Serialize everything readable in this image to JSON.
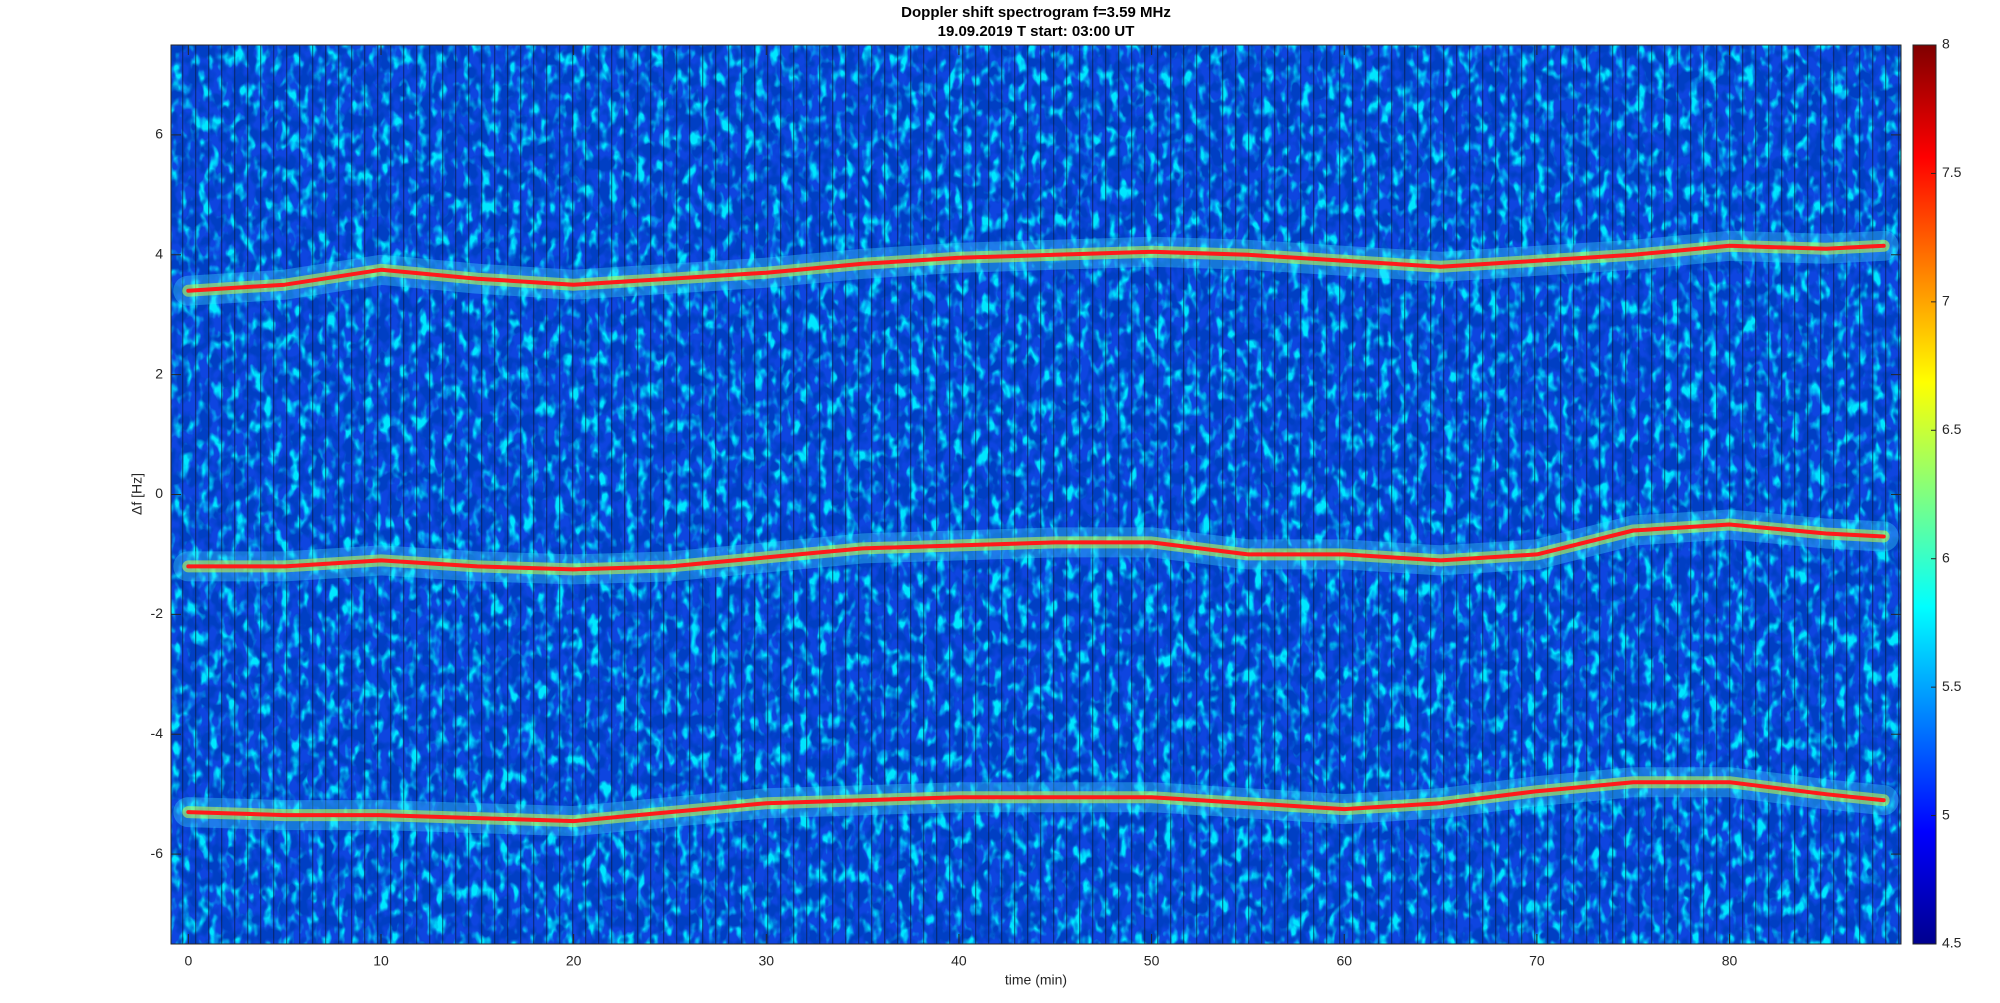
{
  "chart_data": {
    "type": "spectrogram",
    "title": "Doppler shift spectrogram f=3.59 MHz",
    "subtitle": "19.09.2019   T start: 03:00 UT",
    "x_label": "time (min)",
    "y_label": "Δf [Hz]",
    "xlim": [
      -0.9,
      88.9
    ],
    "ylim": [
      -7.5,
      7.5
    ],
    "xticks": [
      0,
      10,
      20,
      30,
      40,
      50,
      60,
      70,
      80
    ],
    "yticks": [
      -6,
      -4,
      -2,
      0,
      2,
      4,
      6
    ],
    "clim": [
      4.5,
      8
    ],
    "cticks": [
      4.5,
      5,
      5.5,
      6,
      6.5,
      7,
      7.5,
      8
    ],
    "colormap": [
      "#00008f",
      "#0000ff",
      "#0080ff",
      "#00ffff",
      "#80ff80",
      "#ffff00",
      "#ff8000",
      "#ff0000",
      "#800000"
    ],
    "x": [
      0,
      5,
      10,
      15,
      20,
      25,
      30,
      35,
      40,
      45,
      50,
      55,
      60,
      65,
      70,
      75,
      80,
      85,
      88
    ],
    "series": [
      {
        "color": "#ff1a1a",
        "values": [
          3.4,
          3.5,
          3.75,
          3.6,
          3.5,
          3.6,
          3.7,
          3.85,
          3.95,
          4.0,
          4.05,
          4.0,
          3.9,
          3.8,
          3.9,
          4.0,
          4.15,
          4.1,
          4.15
        ]
      },
      {
        "color": "#ff1a1a",
        "values": [
          -1.2,
          -1.2,
          -1.1,
          -1.2,
          -1.25,
          -1.2,
          -1.05,
          -0.9,
          -0.85,
          -0.8,
          -0.8,
          -1.0,
          -1.0,
          -1.1,
          -1.0,
          -0.6,
          -0.5,
          -0.65,
          -0.7
        ]
      },
      {
        "color": "#ff1a1a",
        "values": [
          -5.3,
          -5.35,
          -5.35,
          -5.4,
          -5.45,
          -5.3,
          -5.15,
          -5.1,
          -5.05,
          -5.05,
          -5.05,
          -5.15,
          -5.25,
          -5.15,
          -4.95,
          -4.8,
          -4.8,
          -5.0,
          -5.1
        ]
      }
    ]
  }
}
